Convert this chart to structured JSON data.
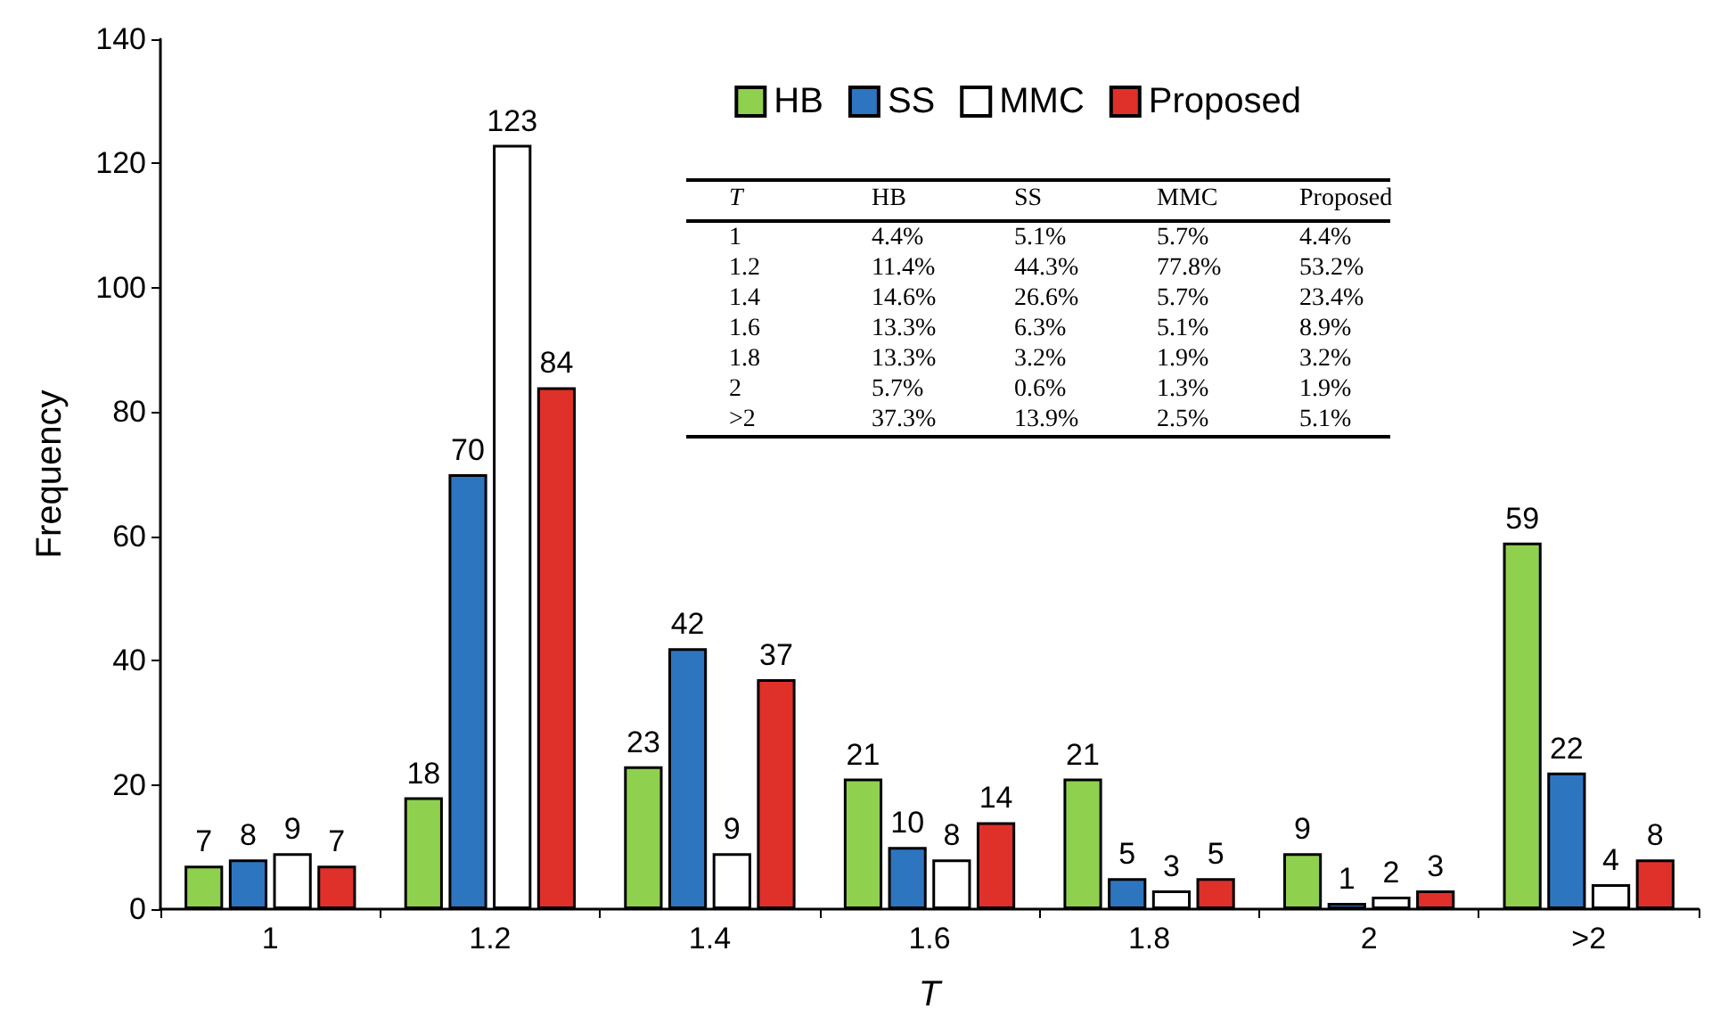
{
  "chart_data": {
    "type": "bar",
    "xlabel": "T",
    "ylabel": "Frequency",
    "categories": [
      "1",
      "1.2",
      "1.4",
      "1.6",
      "1.8",
      "2",
      ">2"
    ],
    "series": [
      {
        "name": "HB",
        "color": "#8fd14f",
        "values": [
          7,
          18,
          23,
          21,
          21,
          9,
          59
        ]
      },
      {
        "name": "SS",
        "color": "#2e75c0",
        "values": [
          8,
          70,
          42,
          10,
          5,
          1,
          22
        ]
      },
      {
        "name": "MMC",
        "color": "#ffffff",
        "values": [
          9,
          123,
          9,
          8,
          3,
          2,
          4
        ]
      },
      {
        "name": "Proposed",
        "color": "#e0302a",
        "values": [
          7,
          84,
          37,
          14,
          5,
          3,
          8
        ]
      }
    ],
    "ylim": [
      0,
      140
    ],
    "yticks": [
      0,
      20,
      40,
      60,
      80,
      100,
      120,
      140
    ],
    "data_labels": true,
    "legend": "top right",
    "grid": false,
    "annotations": [
      "T\tHB\tSS\tMMC\tProposed",
      "1\t4.4%\t5.1%\t5.7%\t4.4%",
      "1.2\t11.4%\t44.3%\t77.8%\t53.2%",
      "1.4\t14.6%\t26.6%\t5.7%\t23.4%",
      "1.6\t13.3%\t6.3%\t5.1%\t8.9%",
      "1.8\t13.3%\t3.2%\t1.9%\t3.2%",
      "2\t5.7%\t0.6%\t1.3%\t1.9%",
      ">2\t37.3%\t13.9%\t2.5%\t5.1%"
    ]
  }
}
